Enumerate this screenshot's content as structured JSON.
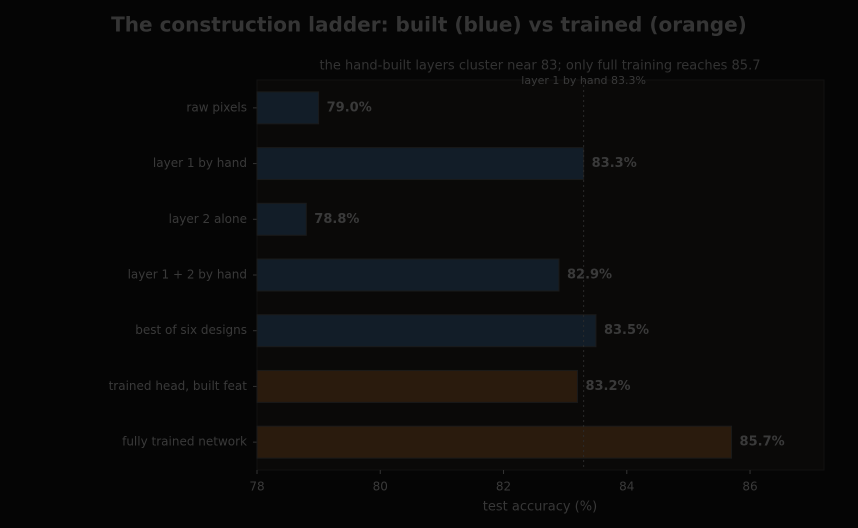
{
  "chart_data": {
    "type": "barh",
    "title": "The construction ladder: built (blue) vs trained (orange)",
    "subtitle": "the hand-built layers cluster near 83; only full training reaches 85.7",
    "categories": [
      "raw pixels",
      "layer 1 by hand",
      "layer 2 alone",
      "layer 1 + 2 by hand",
      "best of six designs",
      "trained head, built feat",
      "fully trained network"
    ],
    "values": [
      79.0,
      83.3,
      78.8,
      82.9,
      83.5,
      83.2,
      85.7
    ],
    "value_labels": [
      "79.0%",
      "83.3%",
      "78.8%",
      "82.9%",
      "83.5%",
      "83.2%",
      "85.7%"
    ],
    "colors": [
      "#121d28",
      "#121d28",
      "#121d28",
      "#121d28",
      "#121d28",
      "#2a1b0d",
      "#2a1b0d"
    ],
    "xlabel": "test accuracy (%)",
    "xlim": [
      78,
      87.2
    ],
    "xticks": [
      78,
      80,
      82,
      84,
      86
    ],
    "reference_line": {
      "value": 83.3,
      "label": "layer 1 by hand 83.3%"
    }
  }
}
